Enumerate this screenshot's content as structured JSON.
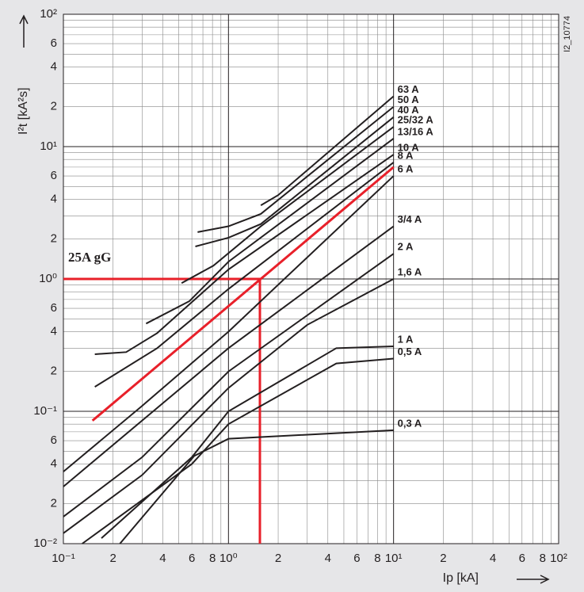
{
  "chart_data": {
    "type": "line",
    "x_label": "Ip [kA]",
    "y_label": "I²t [kA²s]",
    "code": "I2_10774",
    "xscale": "log",
    "yscale": "log",
    "grid": true,
    "xlim": [
      0.1,
      100
    ],
    "ylim": [
      0.01,
      100
    ],
    "xticks": [
      {
        "value": 0.1,
        "label": "10⁻¹"
      },
      {
        "value": 0.2,
        "label": "2"
      },
      {
        "value": 0.4,
        "label": "4"
      },
      {
        "value": 0.6,
        "label": "6"
      },
      {
        "value": 0.8,
        "label": "8"
      },
      {
        "value": 1,
        "label": "10⁰"
      },
      2,
      4,
      6,
      8,
      {
        "value": 10,
        "label": "10¹"
      },
      {
        "value": 20,
        "label": "2"
      },
      {
        "value": 40,
        "label": "4"
      },
      {
        "value": 60,
        "label": "6"
      },
      {
        "value": 80,
        "label": "8"
      },
      {
        "value": 100,
        "label": "10²"
      }
    ],
    "yticks": [
      {
        "value": 0.01,
        "label": "10⁻²"
      },
      {
        "value": 0.02,
        "label": "2"
      },
      {
        "value": 0.04,
        "label": "4"
      },
      {
        "value": 0.06,
        "label": "6"
      },
      {
        "value": 0.1,
        "label": "10⁻¹"
      },
      {
        "value": 0.2,
        "label": "2"
      },
      {
        "value": 0.4,
        "label": "4"
      },
      {
        "value": 0.6,
        "label": "6"
      },
      {
        "value": 1,
        "label": "10⁰"
      },
      2,
      4,
      6,
      {
        "value": 10,
        "label": "10¹"
      },
      {
        "value": 20,
        "label": "2"
      },
      {
        "value": 40,
        "label": "4"
      },
      {
        "value": 60,
        "label": "6"
      },
      {
        "value": 100,
        "label": "10²"
      }
    ],
    "minor_xgrid": [
      0.3,
      0.5,
      0.7,
      0.9,
      3,
      5,
      7,
      9,
      30,
      50,
      70,
      90
    ],
    "minor_ygrid": [
      0.03,
      0.05,
      0.07,
      0.08,
      0.09,
      0.3,
      0.5,
      0.7,
      0.8,
      0.9,
      3,
      5,
      7,
      8,
      9,
      30,
      50,
      70,
      80,
      90
    ],
    "series": [
      {
        "name": "63 A",
        "color": "#231f20",
        "x": [
          1.57,
          2,
          10
        ],
        "values": [
          3.6,
          4.3,
          24
        ]
      },
      {
        "name": "50 A",
        "color": "#231f20",
        "x": [
          0.65,
          1,
          1.57,
          10
        ],
        "values": [
          2.26,
          2.5,
          3.1,
          20
        ]
      },
      {
        "name": "40 A",
        "color": "#231f20",
        "x": [
          0.63,
          1,
          1.57,
          10
        ],
        "values": [
          1.76,
          2.05,
          2.6,
          16.7
        ]
      },
      {
        "name": "25/32 A",
        "color": "#231f20",
        "x": [
          0.52,
          0.81,
          1.57,
          10
        ],
        "values": [
          0.93,
          1.26,
          2.5,
          14.1
        ]
      },
      {
        "name": "13/16 A",
        "color": "#231f20",
        "x": [
          0.317,
          0.58,
          1,
          10
        ],
        "values": [
          0.46,
          0.68,
          1.35,
          11.5
        ]
      },
      {
        "name": "10 A",
        "color": "#231f20",
        "x": [
          0.155,
          0.24,
          0.37,
          1,
          10
        ],
        "values": [
          0.27,
          0.28,
          0.39,
          1.18,
          8.7
        ]
      },
      {
        "name": "8 A",
        "color": "#231f20",
        "x": [
          0.155,
          0.37,
          1,
          10
        ],
        "values": [
          0.153,
          0.3,
          0.84,
          7.6
        ]
      },
      {
        "name": "6 A",
        "color": "#231f20",
        "x": [
          0.1,
          0.3,
          1,
          10
        ],
        "values": [
          0.035,
          0.11,
          0.4,
          6.0
        ]
      },
      {
        "name": "3/4 A",
        "color": "#231f20",
        "x": [
          0.1,
          1,
          10
        ],
        "values": [
          0.027,
          0.3,
          2.5
        ]
      },
      {
        "name": "2 A",
        "color": "#231f20",
        "x": [
          0.1,
          0.3,
          1,
          10
        ],
        "values": [
          0.016,
          0.045,
          0.2,
          1.55
        ]
      },
      {
        "name": "1,6 A",
        "color": "#231f20",
        "x": [
          0.1,
          0.3,
          1,
          3,
          10
        ],
        "values": [
          0.012,
          0.033,
          0.15,
          0.45,
          1.0
        ]
      },
      {
        "name": "1 A",
        "color": "#231f20",
        "x": [
          0.17,
          0.6,
          1,
          4.5,
          10
        ],
        "values": [
          0.011,
          0.045,
          0.1,
          0.3,
          0.31
        ]
      },
      {
        "name": "0,5 A",
        "color": "#231f20",
        "x": [
          0.13,
          0.6,
          1,
          4.5,
          10
        ],
        "values": [
          0.01,
          0.04,
          0.08,
          0.23,
          0.25
        ]
      },
      {
        "name": "0,3 A",
        "color": "#231f20",
        "x": [
          0.22,
          0.62,
          1,
          10
        ],
        "values": [
          0.01,
          0.046,
          0.062,
          0.072
        ]
      },
      {
        "name": "25A gG",
        "color": "#e8202a",
        "x": [
          0.15,
          10
        ],
        "values": [
          0.085,
          7.0
        ]
      }
    ],
    "guides": [
      {
        "color": "#e8202a",
        "x": [
          0.1,
          1.55,
          1.55
        ],
        "values": [
          1,
          1,
          0.01
        ]
      }
    ]
  }
}
